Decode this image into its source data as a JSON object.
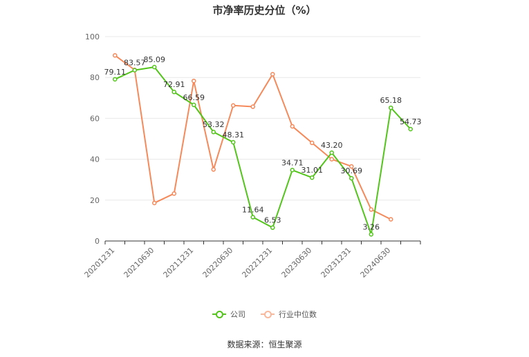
{
  "chart_data": {
    "type": "line",
    "title": "市净率历史分位（%）",
    "xlabel": "",
    "ylabel": "",
    "ylim": [
      0,
      100
    ],
    "yticks": [
      "0",
      "20",
      "40",
      "60",
      "80",
      "100"
    ],
    "x_tick_labels": [
      "20201231",
      "20210630",
      "20211231",
      "20220630",
      "20221231",
      "20230630",
      "20231231",
      "20240630"
    ],
    "x_tick_positions": [
      0,
      2,
      4,
      6,
      8,
      10,
      12,
      14
    ],
    "x_count": 16,
    "grid": true,
    "legend": "bottom-center",
    "series": [
      {
        "name": "公司",
        "color": "#52c41a",
        "values": [
          79.11,
          83.57,
          85.09,
          72.91,
          66.59,
          53.32,
          48.31,
          11.64,
          6.53,
          34.71,
          31.01,
          43.2,
          30.69,
          3.26,
          65.18,
          54.73
        ],
        "labels": [
          "79.11",
          "83.57",
          "85.09",
          "72.91",
          "66.59",
          "53.32",
          "48.31",
          "11.64",
          "6.53",
          "34.71",
          "31.01",
          "43.20",
          "30.69",
          "3.26",
          "65.18",
          "54.73"
        ]
      },
      {
        "name": "行业中位数",
        "color": "#f5895a",
        "values": [
          90.8,
          83.7,
          18.6,
          23.2,
          78.3,
          35.0,
          66.3,
          65.7,
          81.6,
          56.1,
          48.0,
          40.0,
          36.5,
          15.4,
          10.6
        ]
      }
    ]
  },
  "source": "数据来源：恒生聚源"
}
